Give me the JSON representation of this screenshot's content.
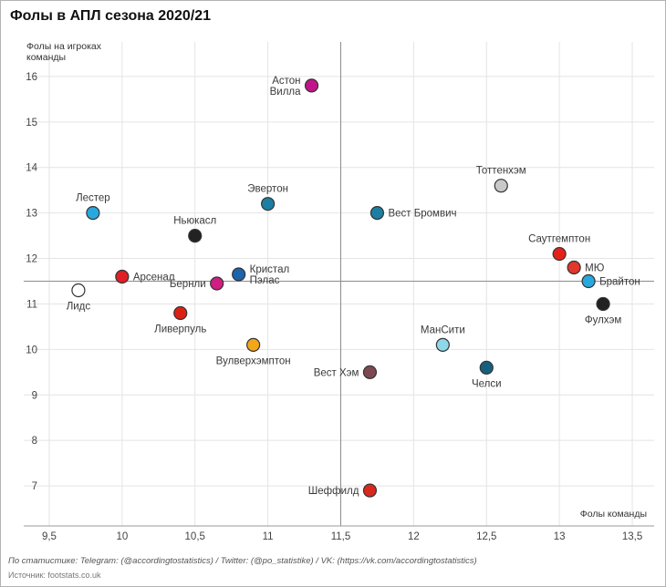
{
  "title": "Фолы в АПЛ сезона 2020/21",
  "footer": {
    "credit": "По статистике: Telegram: (@accordingtostatistics) / Twitter: (@po_statistike) / VK: (https://vk.com/accordingtostatistics)",
    "source": "Источник: footstats.co.uk"
  },
  "chart_data": {
    "type": "scatter",
    "title": "Фолы в АПЛ сезона 2020/21",
    "xlabel": "Фолы команды",
    "ylabel": "Фолы на игроках команды",
    "ylabel_lines": [
      "Фолы на игроках",
      "команды"
    ],
    "xlim": [
      9.325,
      13.65
    ],
    "ylim": [
      6.12,
      16.76
    ],
    "x_ticks": [
      9.5,
      10,
      10.5,
      11,
      11.5,
      12,
      12.5,
      13,
      13.5
    ],
    "x_tick_labels": [
      "9,5",
      "10",
      "10,5",
      "11",
      "11,5",
      "12",
      "12,5",
      "13",
      "13,5"
    ],
    "y_ticks": [
      7,
      8,
      9,
      10,
      11,
      12,
      13,
      14,
      15,
      16
    ],
    "grid": true,
    "legend": "none",
    "reference_lines": {
      "x": 11.5,
      "y": 11.5
    },
    "points": [
      {
        "name": "Астон\nВилла",
        "x": 11.3,
        "y": 15.8,
        "color": "#c2138a",
        "label_pos": "left"
      },
      {
        "name": "Тоттенхэм",
        "x": 12.6,
        "y": 13.6,
        "color": "#c9c9c9",
        "label_pos": "above"
      },
      {
        "name": "Лестер",
        "x": 9.8,
        "y": 13.0,
        "color": "#27a9df",
        "label_pos": "above"
      },
      {
        "name": "Эвертон",
        "x": 11.0,
        "y": 13.2,
        "color": "#1b7fa3",
        "label_pos": "above"
      },
      {
        "name": "Вест Бромвич",
        "x": 11.75,
        "y": 13.0,
        "color": "#1b7fa3",
        "label_pos": "right"
      },
      {
        "name": "Ньюкасл",
        "x": 10.5,
        "y": 12.5,
        "color": "#222222",
        "label_pos": "above"
      },
      {
        "name": "Саутгемптон",
        "x": 13.0,
        "y": 12.1,
        "color": "#e32119",
        "label_pos": "above"
      },
      {
        "name": "МЮ",
        "x": 13.1,
        "y": 11.8,
        "color": "#e2372b",
        "label_pos": "right"
      },
      {
        "name": "Арсенал",
        "x": 10.0,
        "y": 11.6,
        "color": "#e01f26",
        "label_pos": "right"
      },
      {
        "name": "Кристал\nПэлас",
        "x": 10.8,
        "y": 11.65,
        "color": "#1c64ad",
        "label_pos": "right"
      },
      {
        "name": "Бернли",
        "x": 10.65,
        "y": 11.45,
        "color": "#cf1f80",
        "label_pos": "left"
      },
      {
        "name": "Брайтон",
        "x": 13.2,
        "y": 11.5,
        "color": "#27a9df",
        "label_pos": "right"
      },
      {
        "name": "Лидс",
        "x": 9.7,
        "y": 11.3,
        "color": "#ffffff",
        "label_pos": "below"
      },
      {
        "name": "Фулхэм",
        "x": 13.3,
        "y": 11.0,
        "color": "#222222",
        "label_pos": "below"
      },
      {
        "name": "Ливерпуль",
        "x": 10.4,
        "y": 10.8,
        "color": "#dd2016",
        "label_pos": "below"
      },
      {
        "name": "МанСити",
        "x": 12.2,
        "y": 10.1,
        "color": "#8ed8ea",
        "label_pos": "above"
      },
      {
        "name": "Вулверхэмптон",
        "x": 10.9,
        "y": 10.1,
        "color": "#f2a71b",
        "label_pos": "below"
      },
      {
        "name": "Вест Хэм",
        "x": 11.7,
        "y": 9.5,
        "color": "#7d4852",
        "label_pos": "left"
      },
      {
        "name": "Челси",
        "x": 12.5,
        "y": 9.6,
        "color": "#16607e",
        "label_pos": "below"
      },
      {
        "name": "Шеффилд",
        "x": 11.7,
        "y": 6.9,
        "color": "#d8291f",
        "label_pos": "left"
      }
    ]
  }
}
